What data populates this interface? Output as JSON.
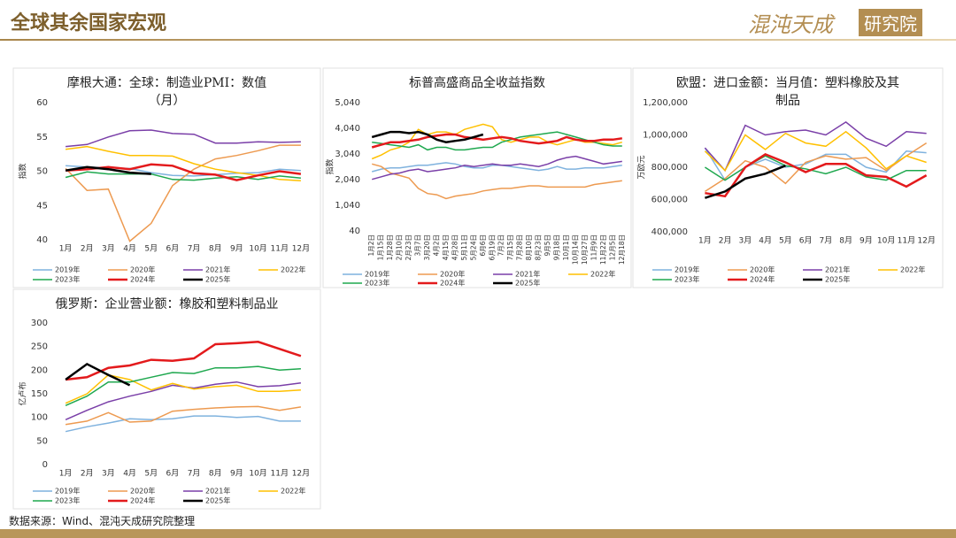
{
  "header": {
    "title": "全球其余国家宏观",
    "logo_text": "混沌天成",
    "logo_box": "研究院"
  },
  "footer": {
    "source": "数据来源：Wind、混沌天成研究院整理"
  },
  "chart_data": [
    {
      "type": "line",
      "title": "摩根大通：全球：制造业PMI：数值（月）",
      "y_label": "指数",
      "categories": [
        "1月",
        "2月",
        "3月",
        "4月",
        "5月",
        "6月",
        "7月",
        "8月",
        "9月",
        "10月",
        "11月",
        "12月"
      ],
      "ylim": [
        40,
        60
      ],
      "yticks": [
        40,
        45,
        50,
        55,
        60
      ],
      "series": [
        {
          "name": "2019年",
          "color": "#7fb2de",
          "values": [
            50.8,
            50.6,
            50.5,
            50.4,
            49.8,
            49.4,
            49.3,
            49.5,
            49.7,
            49.8,
            50.3,
            50.1
          ]
        },
        {
          "name": "2020年",
          "color": "#ed9a50",
          "values": [
            50.4,
            47.2,
            47.4,
            39.8,
            42.4,
            47.9,
            50.3,
            51.8,
            52.3,
            53.0,
            53.8,
            53.8
          ]
        },
        {
          "name": "2021年",
          "color": "#7a3fa8",
          "values": [
            53.6,
            53.9,
            55.0,
            55.9,
            56.0,
            55.5,
            55.4,
            54.1,
            54.1,
            54.3,
            54.2,
            54.3
          ]
        },
        {
          "name": "2022年",
          "color": "#ffc000",
          "values": [
            53.2,
            53.6,
            52.9,
            52.3,
            52.3,
            52.2,
            51.1,
            50.3,
            49.8,
            49.4,
            48.8,
            48.6
          ]
        },
        {
          "name": "2023年",
          "color": "#1fa84f",
          "values": [
            49.1,
            49.9,
            49.6,
            49.6,
            49.6,
            48.8,
            48.7,
            49.0,
            49.2,
            48.8,
            49.3,
            49.0
          ]
        },
        {
          "name": "2024年",
          "color": "#e31a1c",
          "values": [
            50.1,
            50.3,
            50.6,
            50.3,
            51.0,
            50.8,
            49.7,
            49.5,
            48.7,
            49.4,
            50.0,
            49.6
          ]
        },
        {
          "name": "2025年",
          "color": "#000000",
          "values": [
            50.1,
            50.6,
            50.3,
            49.8,
            49.6,
            null,
            null,
            null,
            null,
            null,
            null,
            null
          ]
        }
      ]
    },
    {
      "type": "line",
      "title": "标普高盛商品全收益指数",
      "y_label": "指数",
      "categories": [
        "1月2日",
        "1月15日",
        "1月28日",
        "2月10日",
        "2月23日",
        "3月7日",
        "3月20日",
        "4月2日",
        "4月15日",
        "4月28日",
        "5月11日",
        "5月24日",
        "6月6日",
        "6月19日",
        "7月2日",
        "7月15日",
        "7月28日",
        "8月10日",
        "8月23日",
        "9月5日",
        "9月18日",
        "10月1日",
        "10月14日",
        "10月27日",
        "11月9日",
        "11月22日",
        "12月5日",
        "12月18日"
      ],
      "ylim": [
        40,
        5040
      ],
      "yticks": [
        40,
        {
          "value": 1040,
          "label": "1,040"
        },
        {
          "value": 2040,
          "label": "2,040"
        },
        {
          "value": 3040,
          "label": "3,040"
        },
        {
          "value": 4040,
          "label": "4,040"
        },
        {
          "value": 5040,
          "label": "5,040"
        }
      ],
      "series": [
        {
          "name": "2019年",
          "color": "#7fb2de",
          "values": [
            2350,
            2450,
            2500,
            2500,
            2550,
            2600,
            2600,
            2650,
            2700,
            2650,
            2550,
            2500,
            2500,
            2600,
            2600,
            2550,
            2500,
            2450,
            2400,
            2450,
            2550,
            2450,
            2450,
            2500,
            2500,
            2500,
            2550,
            2600
          ]
        },
        {
          "name": "2020年",
          "color": "#ed9a50",
          "values": [
            2650,
            2550,
            2300,
            2200,
            2100,
            1700,
            1500,
            1450,
            1300,
            1400,
            1450,
            1500,
            1600,
            1650,
            1700,
            1700,
            1750,
            1800,
            1800,
            1750,
            1750,
            1750,
            1750,
            1750,
            1850,
            1900,
            1950,
            2000
          ]
        },
        {
          "name": "2021年",
          "color": "#7a3fa8",
          "values": [
            2050,
            2150,
            2250,
            2300,
            2400,
            2450,
            2350,
            2400,
            2450,
            2500,
            2600,
            2550,
            2600,
            2650,
            2600,
            2600,
            2650,
            2600,
            2550,
            2650,
            2800,
            2900,
            2950,
            2850,
            2750,
            2650,
            2700,
            2750
          ]
        },
        {
          "name": "2022年",
          "color": "#ffc000",
          "values": [
            2850,
            3000,
            3200,
            3300,
            3500,
            4000,
            3800,
            3900,
            3900,
            3800,
            4000,
            4100,
            4200,
            4100,
            3600,
            3500,
            3600,
            3700,
            3700,
            3500,
            3400,
            3500,
            3600,
            3500,
            3500,
            3450,
            3400,
            3500
          ]
        },
        {
          "name": "2023年",
          "color": "#1fa84f",
          "values": [
            3500,
            3450,
            3400,
            3350,
            3300,
            3400,
            3200,
            3300,
            3300,
            3200,
            3200,
            3250,
            3300,
            3300,
            3500,
            3600,
            3700,
            3750,
            3800,
            3850,
            3900,
            3800,
            3700,
            3600,
            3500,
            3400,
            3350,
            3350
          ]
        },
        {
          "name": "2024年",
          "color": "#e31a1c",
          "values": [
            3300,
            3400,
            3500,
            3500,
            3550,
            3600,
            3700,
            3750,
            3800,
            3800,
            3700,
            3650,
            3600,
            3650,
            3700,
            3650,
            3550,
            3500,
            3450,
            3500,
            3550,
            3700,
            3600,
            3550,
            3550,
            3600,
            3600,
            3650
          ]
        },
        {
          "name": "2025年",
          "color": "#000000",
          "values": [
            3700,
            3800,
            3900,
            3900,
            3850,
            3900,
            3800,
            3600,
            3500,
            3550,
            3600,
            3700,
            3800,
            null,
            null,
            null,
            null,
            null,
            null,
            null,
            null,
            null,
            null,
            null,
            null,
            null,
            null,
            null
          ]
        }
      ]
    },
    {
      "type": "line",
      "title": "欧盟：进口金额：当月值：塑料橡胶及其制品",
      "y_label": "万欧元",
      "categories": [
        "1月",
        "2月",
        "3月",
        "4月",
        "5月",
        "6月",
        "7月",
        "8月",
        "9月",
        "10月",
        "11月",
        "12月"
      ],
      "ylim": [
        400000,
        1200000
      ],
      "yticks": [
        {
          "value": 400000,
          "label": "400,000"
        },
        {
          "value": 600000,
          "label": "600,000"
        },
        {
          "value": 800000,
          "label": "800,000"
        },
        {
          "value": 1000000,
          "label": "1,000,000"
        },
        {
          "value": 1200000,
          "label": "1,200,000"
        }
      ],
      "series": [
        {
          "name": "2019年",
          "color": "#7fb2de",
          "values": [
            920000,
            720000,
            800000,
            850000,
            800000,
            820000,
            880000,
            880000,
            800000,
            770000,
            900000,
            890000
          ]
        },
        {
          "name": "2020年",
          "color": "#ed9a50",
          "values": [
            650000,
            730000,
            840000,
            800000,
            700000,
            830000,
            870000,
            850000,
            860000,
            780000,
            870000,
            950000
          ]
        },
        {
          "name": "2021年",
          "color": "#7a3fa8",
          "values": [
            920000,
            780000,
            1060000,
            1000000,
            1020000,
            1030000,
            1000000,
            1080000,
            980000,
            930000,
            1020000,
            1010000
          ]
        },
        {
          "name": "2022年",
          "color": "#ffc000",
          "values": [
            900000,
            780000,
            1000000,
            910000,
            1010000,
            950000,
            930000,
            1020000,
            920000,
            790000,
            870000,
            830000
          ]
        },
        {
          "name": "2023年",
          "color": "#1fa84f",
          "values": [
            800000,
            720000,
            800000,
            870000,
            810000,
            790000,
            760000,
            800000,
            740000,
            720000,
            780000,
            780000
          ]
        },
        {
          "name": "2024年",
          "color": "#e31a1c",
          "values": [
            640000,
            620000,
            800000,
            880000,
            830000,
            770000,
            820000,
            820000,
            750000,
            740000,
            680000,
            750000
          ]
        },
        {
          "name": "2025年",
          "color": "#000000",
          "values": [
            610000,
            650000,
            730000,
            760000,
            810000,
            null,
            null,
            null,
            null,
            null,
            null,
            null
          ]
        }
      ]
    },
    {
      "type": "line",
      "title": "俄罗斯：企业营业额：橡胶和塑料制品业",
      "y_label": "亿卢布",
      "categories": [
        "1月",
        "2月",
        "3月",
        "4月",
        "5月",
        "6月",
        "7月",
        "8月",
        "9月",
        "10月",
        "11月",
        "12月"
      ],
      "ylim": [
        0,
        300
      ],
      "yticks": [
        0,
        50,
        100,
        150,
        200,
        250,
        300
      ],
      "series": [
        {
          "name": "2019年",
          "color": "#7fb2de",
          "values": [
            70,
            80,
            88,
            97,
            95,
            97,
            103,
            103,
            100,
            102,
            92,
            92
          ]
        },
        {
          "name": "2020年",
          "color": "#ed9a50",
          "values": [
            85,
            92,
            110,
            90,
            92,
            113,
            117,
            120,
            122,
            123,
            115,
            122
          ]
        },
        {
          "name": "2021年",
          "color": "#7a3fa8",
          "values": [
            95,
            115,
            133,
            145,
            155,
            168,
            162,
            170,
            175,
            165,
            167,
            173
          ]
        },
        {
          "name": "2022年",
          "color": "#ffc000",
          "values": [
            130,
            150,
            190,
            180,
            158,
            172,
            160,
            165,
            168,
            155,
            155,
            158
          ]
        },
        {
          "name": "2023年",
          "color": "#1fa84f",
          "values": [
            125,
            145,
            175,
            175,
            185,
            195,
            193,
            205,
            205,
            208,
            200,
            203
          ]
        },
        {
          "name": "2024年",
          "color": "#e31a1c",
          "values": [
            180,
            185,
            205,
            210,
            222,
            220,
            225,
            255,
            257,
            260,
            245,
            230
          ]
        },
        {
          "name": "2025年",
          "color": "#000000",
          "values": [
            180,
            213,
            190,
            168,
            null,
            null,
            null,
            null,
            null,
            null,
            null,
            null
          ]
        }
      ]
    }
  ]
}
